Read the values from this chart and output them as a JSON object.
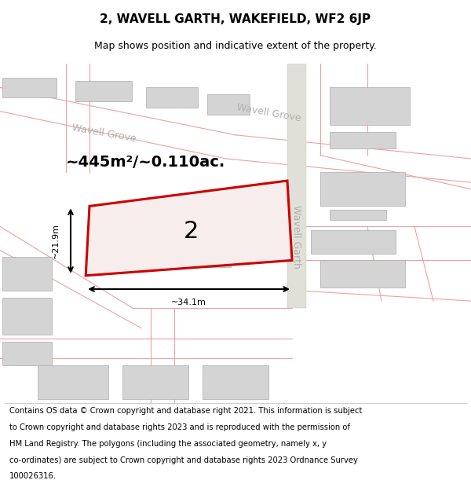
{
  "title": "2, WAVELL GARTH, WAKEFIELD, WF2 6JP",
  "subtitle": "Map shows position and indicative extent of the property.",
  "area_label": "~445m²/~0.110ac.",
  "width_label": "~34.1m",
  "height_label": "~21.9m",
  "property_number": "2",
  "background_color": "#f0f0eb",
  "building_fill": "#d4d4d4",
  "building_stroke": "#aaaaaa",
  "red_polygon_color": "#cc0000",
  "pink_line_color": "#f0a0a0",
  "road_label_color": "#b0b0b0",
  "street_label_wavell_grove": "Wavell Grove",
  "street_label_wavell_garth": "Wavell Garth",
  "footer_lines": [
    "Contains OS data © Crown copyright and database right 2021. This information is subject",
    "to Crown copyright and database rights 2023 and is reproduced with the permission of",
    "HM Land Registry. The polygons (including the associated geometry, namely x, y",
    "co-ordinates) are subject to Crown copyright and database rights 2023 Ordnance Survey",
    "100026316."
  ]
}
